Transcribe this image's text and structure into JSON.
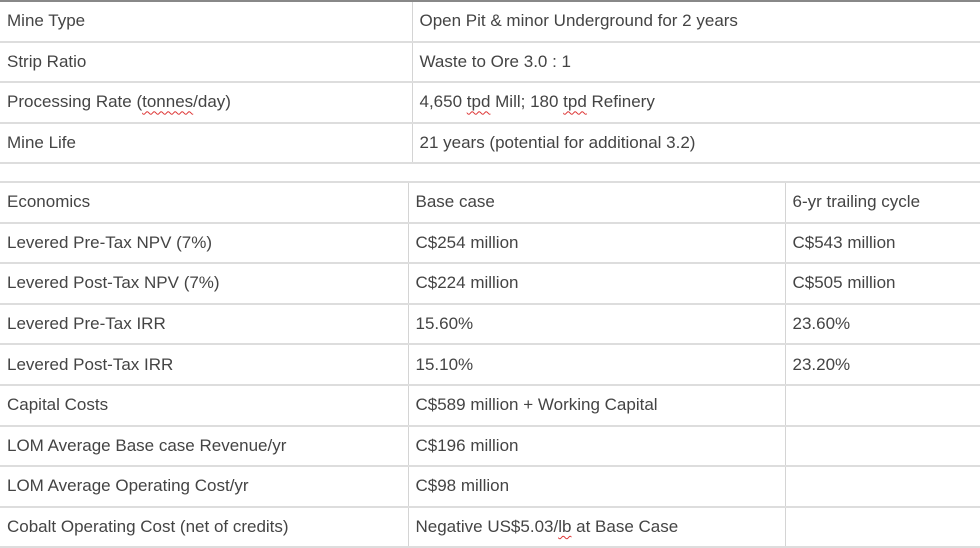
{
  "summary": [
    {
      "label": "Mine Type",
      "value": "Open Pit & minor Underground for 2 years"
    },
    {
      "label_parts": [
        "Processing Rate (",
        "tonnes",
        "/day)"
      ],
      "value_parts": [
        "4,650 ",
        "tpd",
        " Mill; 180 ",
        "tpd",
        " Refinery"
      ]
    },
    {
      "label": "Strip Ratio",
      "value": "Waste to Ore 3.0 : 1"
    },
    {
      "label": "Mine Life",
      "value": "21 years (potential for additional 3.2)"
    }
  ],
  "economics": {
    "headers": [
      "Economics",
      "Base case",
      "6-yr trailing cycle"
    ],
    "rows": [
      [
        "Levered Pre-Tax NPV (7%)",
        "C$254 million",
        "C$543 million"
      ],
      [
        "Levered Post-Tax NPV (7%)",
        "C$224 million",
        "C$505 million"
      ],
      [
        "Levered Pre-Tax IRR",
        "15.60%",
        "23.60%"
      ],
      [
        "Levered Post-Tax IRR",
        "15.10%",
        "23.20%"
      ],
      [
        "Capital Costs",
        "C$589 million + Working Capital",
        ""
      ],
      [
        "LOM Average Base case Revenue/yr",
        "C$196 million",
        ""
      ],
      [
        "LOM Average Operating Cost/yr",
        "C$98 million",
        ""
      ],
      [
        "Cobalt Operating Cost (net of credits)",
        "",
        ""
      ]
    ],
    "cobalt_value_parts": [
      "Negative US$5.03/",
      "lb",
      " at Base Case"
    ]
  }
}
